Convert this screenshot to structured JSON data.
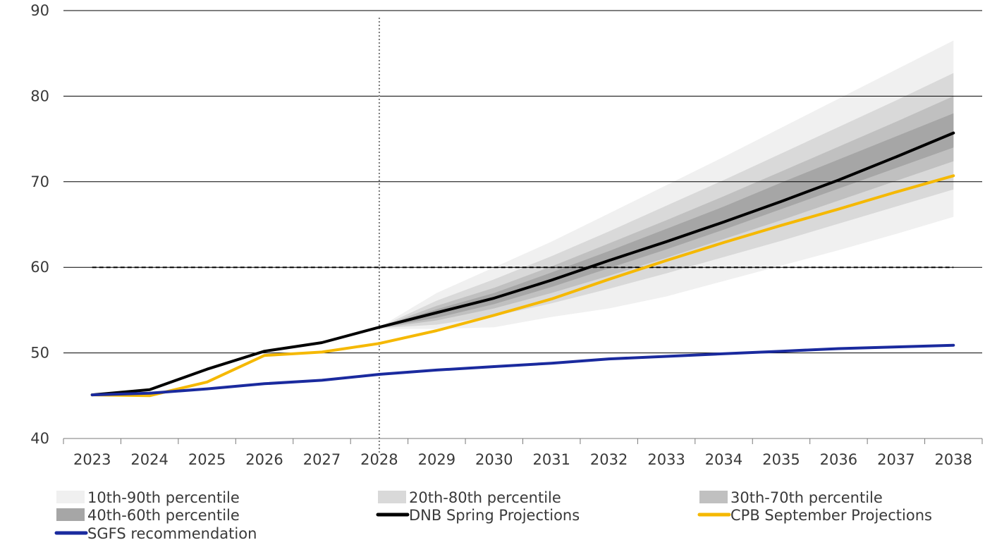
{
  "chart_data": {
    "type": "line",
    "title": "",
    "xlabel": "",
    "ylabel": "",
    "x": [
      "2023",
      "2024",
      "2025",
      "2026",
      "2027",
      "2028",
      "2029",
      "2030",
      "2031",
      "2032",
      "2033",
      "2034",
      "2035",
      "2036",
      "2037",
      "2038"
    ],
    "ylim": [
      40,
      90
    ],
    "yticks": [
      40,
      50,
      60,
      70,
      80,
      90
    ],
    "grid": "horizontal",
    "legend_position": "bottom",
    "reference_lines": {
      "horizontal_dashed_value": 60,
      "vertical_dotted_at": "2028"
    },
    "bands": [
      {
        "name": "10th-90th percentile",
        "color": "#f0f0f0",
        "x": [
          "2028",
          "2029",
          "2030",
          "2031",
          "2032",
          "2033",
          "2034",
          "2035",
          "2036",
          "2037",
          "2038"
        ],
        "lower": [
          52.8,
          52.8,
          53.0,
          54.2,
          55.2,
          56.6,
          58.4,
          60.2,
          62.0,
          63.9,
          65.9
        ],
        "upper": [
          53.0,
          57.0,
          60.0,
          63.0,
          66.3,
          69.6,
          72.9,
          76.3,
          79.7,
          83.1,
          86.5
        ]
      },
      {
        "name": "20th-80th percentile",
        "color": "#d9d9d9",
        "x": [
          "2028",
          "2029",
          "2030",
          "2031",
          "2032",
          "2033",
          "2034",
          "2035",
          "2036",
          "2037",
          "2038"
        ],
        "lower": [
          52.9,
          53.3,
          54.3,
          55.8,
          57.5,
          59.3,
          61.2,
          63.1,
          65.1,
          67.1,
          69.1
        ],
        "upper": [
          53.0,
          56.1,
          58.6,
          61.3,
          64.2,
          67.2,
          70.2,
          73.3,
          76.4,
          79.5,
          82.7
        ]
      },
      {
        "name": "30th-70th percentile",
        "color": "#c0c0c0",
        "x": [
          "2028",
          "2029",
          "2030",
          "2031",
          "2032",
          "2033",
          "2034",
          "2035",
          "2036",
          "2037",
          "2038"
        ],
        "lower": [
          52.9,
          53.8,
          55.2,
          57.0,
          59.0,
          61.1,
          63.3,
          65.5,
          67.8,
          70.1,
          72.4
        ],
        "upper": [
          53.0,
          55.5,
          57.6,
          60.1,
          62.8,
          65.5,
          68.3,
          71.2,
          74.1,
          77.0,
          80.0
        ]
      },
      {
        "name": "40th-60th percentile",
        "color": "#a6a6a6",
        "x": [
          "2028",
          "2029",
          "2030",
          "2031",
          "2032",
          "2033",
          "2034",
          "2035",
          "2036",
          "2037",
          "2038"
        ],
        "lower": [
          52.95,
          54.1,
          55.7,
          57.7,
          59.9,
          62.1,
          64.4,
          66.8,
          69.2,
          71.6,
          74.0
        ],
        "upper": [
          53.0,
          55.1,
          57.0,
          59.4,
          61.9,
          64.5,
          67.1,
          69.9,
          72.6,
          75.3,
          78.0
        ]
      }
    ],
    "series": [
      {
        "name": "DNB Spring Projections",
        "color": "#000000",
        "x": [
          "2023",
          "2024",
          "2025",
          "2026",
          "2027",
          "2028",
          "2029",
          "2030",
          "2031",
          "2032",
          "2033",
          "2034",
          "2035",
          "2036",
          "2037",
          "2038"
        ],
        "values": [
          45.1,
          45.7,
          48.1,
          50.2,
          51.2,
          53.0,
          54.7,
          56.4,
          58.5,
          60.8,
          63.0,
          65.3,
          67.7,
          70.2,
          72.9,
          75.7
        ]
      },
      {
        "name": "CPB September Projections",
        "color": "#f5b800",
        "x": [
          "2023",
          "2024",
          "2025",
          "2026",
          "2027",
          "2028",
          "2029",
          "2030",
          "2031",
          "2032",
          "2033",
          "2034",
          "2035",
          "2036",
          "2037",
          "2038"
        ],
        "values": [
          45.1,
          45.0,
          46.6,
          49.7,
          50.1,
          51.1,
          52.6,
          54.4,
          56.3,
          58.6,
          60.8,
          62.9,
          64.9,
          66.8,
          68.8,
          70.7
        ]
      },
      {
        "name": "SGFS recommendation",
        "color": "#1a2a9e",
        "x": [
          "2023",
          "2024",
          "2025",
          "2026",
          "2027",
          "2028",
          "2029",
          "2030",
          "2031",
          "2032",
          "2033",
          "2034",
          "2035",
          "2036",
          "2037",
          "2038"
        ],
        "values": [
          45.1,
          45.3,
          45.8,
          46.4,
          46.8,
          47.5,
          48.0,
          48.4,
          48.8,
          49.3,
          49.6,
          49.9,
          50.2,
          50.5,
          50.7,
          50.9
        ]
      }
    ],
    "legend": [
      {
        "label": "10th-90th percentile",
        "kind": "band",
        "color": "#f0f0f0"
      },
      {
        "label": "20th-80th percentile",
        "kind": "band",
        "color": "#d9d9d9"
      },
      {
        "label": "30th-70th percentile",
        "kind": "band",
        "color": "#c0c0c0"
      },
      {
        "label": "40th-60th percentile",
        "kind": "band",
        "color": "#a6a6a6"
      },
      {
        "label": "DNB Spring Projections",
        "kind": "line",
        "color": "#000000"
      },
      {
        "label": "CPB September Projections",
        "kind": "line",
        "color": "#f5b800"
      },
      {
        "label": "SGFS recommendation",
        "kind": "line",
        "color": "#1a2a9e"
      }
    ]
  }
}
